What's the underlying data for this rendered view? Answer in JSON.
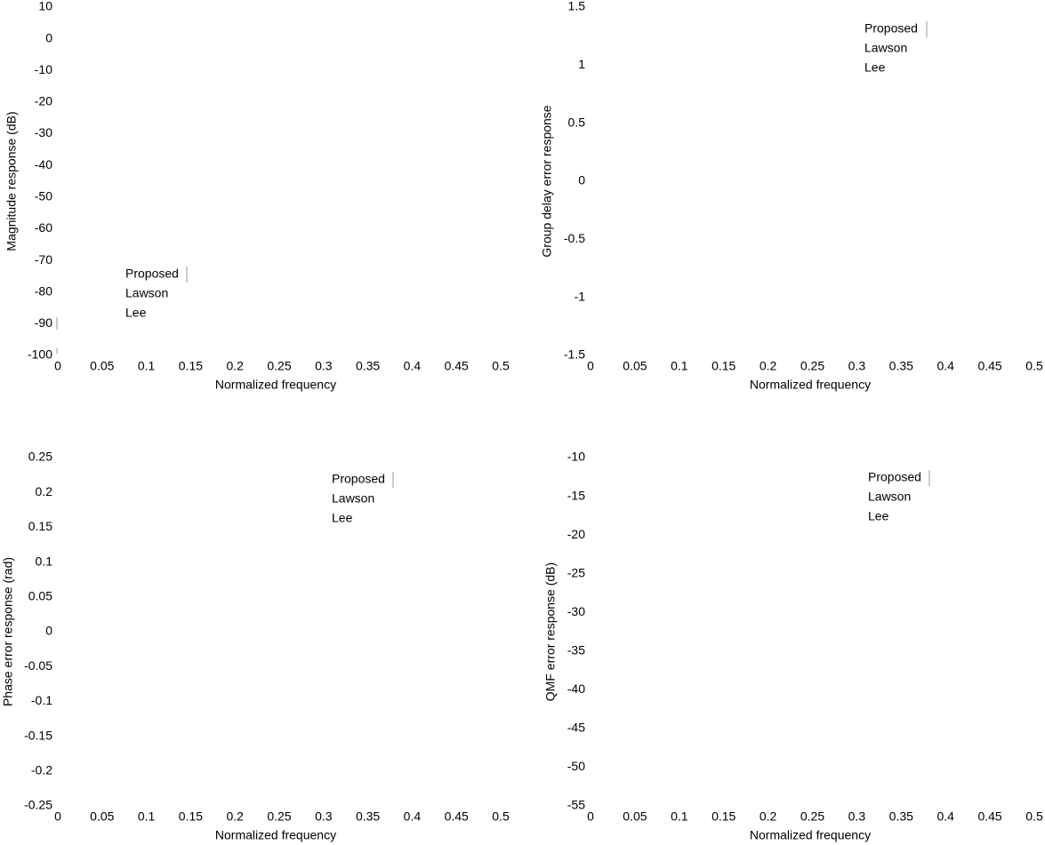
{
  "colors": {
    "text": "#000000",
    "legend_line": "#999999"
  },
  "chart_data": [
    {
      "id": "magnitude",
      "type": "line",
      "title": "",
      "xlabel": "Normalized frequency",
      "ylabel": "Magnitude response (dB)",
      "xlim": [
        0,
        0.5
      ],
      "ylim": [
        -100,
        10
      ],
      "xticks": [
        "0",
        "0.05",
        "0.1",
        "0.15",
        "0.2",
        "0.25",
        "0.3",
        "0.35",
        "0.4",
        "0.45",
        "0.5"
      ],
      "yticks": [
        "10",
        "0",
        "-10",
        "-20",
        "-30",
        "-40",
        "-50",
        "-60",
        "-70",
        "-80",
        "-90",
        "-100"
      ],
      "legend": {
        "location": "lower-left",
        "entries": [
          "Proposed",
          "Lawson",
          "Lee"
        ]
      },
      "series": [
        {
          "name": "Proposed",
          "x": [],
          "y": []
        },
        {
          "name": "Lawson",
          "x": [],
          "y": []
        },
        {
          "name": "Lee",
          "x": [],
          "y": []
        }
      ]
    },
    {
      "id": "group-delay",
      "type": "line",
      "title": "",
      "xlabel": "Normalized frequency",
      "ylabel": "Group delay error response",
      "xlim": [
        0,
        0.5
      ],
      "ylim": [
        -1.5,
        1.5
      ],
      "xticks": [
        "0",
        "0.05",
        "0.1",
        "0.15",
        "0.2",
        "0.25",
        "0.3",
        "0.35",
        "0.4",
        "0.45",
        "0.5"
      ],
      "yticks": [
        "1.5",
        "1",
        "0.5",
        "0",
        "-0.5",
        "-1",
        "-1.5"
      ],
      "legend": {
        "location": "top-right",
        "entries": [
          "Proposed",
          "Lawson",
          "Lee"
        ]
      },
      "series": [
        {
          "name": "Proposed",
          "x": [],
          "y": []
        },
        {
          "name": "Lawson",
          "x": [],
          "y": []
        },
        {
          "name": "Lee",
          "x": [],
          "y": []
        }
      ]
    },
    {
      "id": "phase-error",
      "type": "line",
      "title": "",
      "xlabel": "Normalized frequency",
      "ylabel": "Phase error response (rad)",
      "xlim": [
        0,
        0.5
      ],
      "ylim": [
        -0.25,
        0.25
      ],
      "xticks": [
        "0",
        "0.05",
        "0.1",
        "0.15",
        "0.2",
        "0.25",
        "0.3",
        "0.35",
        "0.4",
        "0.45",
        "0.5"
      ],
      "yticks": [
        "0.25",
        "0.2",
        "0.15",
        "0.1",
        "0.05",
        "0",
        "-0.05",
        "-0.1",
        "-0.15",
        "-0.2",
        "-0.25"
      ],
      "legend": {
        "location": "top-right",
        "entries": [
          "Proposed",
          "Lawson",
          "Lee"
        ]
      },
      "series": [
        {
          "name": "Proposed",
          "x": [],
          "y": []
        },
        {
          "name": "Lawson",
          "x": [],
          "y": []
        },
        {
          "name": "Lee",
          "x": [],
          "y": []
        }
      ]
    },
    {
      "id": "qmf-error",
      "type": "line",
      "title": "",
      "xlabel": "Normalized frequency",
      "ylabel": "QMF error response (dB)",
      "xlim": [
        0,
        0.5
      ],
      "ylim": [
        -55,
        -10
      ],
      "xticks": [
        "0",
        "0.05",
        "0.1",
        "0.15",
        "0.2",
        "0.25",
        "0.3",
        "0.35",
        "0.4",
        "0.45",
        "0.5"
      ],
      "yticks": [
        "-10",
        "-15",
        "-20",
        "-25",
        "-30",
        "-35",
        "-40",
        "-45",
        "-50",
        "-55"
      ],
      "legend": {
        "location": "top-right",
        "entries": [
          "Proposed",
          "Lawson",
          "Lee"
        ]
      },
      "series": [
        {
          "name": "Proposed",
          "x": [],
          "y": []
        },
        {
          "name": "Lawson",
          "x": [],
          "y": []
        },
        {
          "name": "Lee",
          "x": [],
          "y": []
        }
      ]
    }
  ]
}
